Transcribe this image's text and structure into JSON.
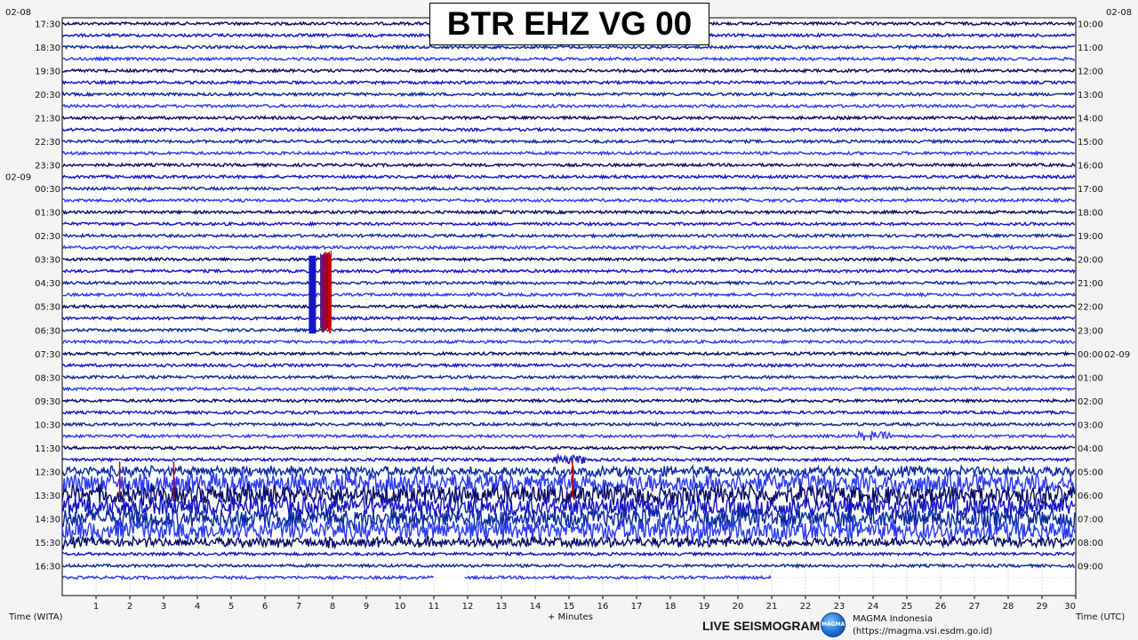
{
  "title": "BTR EHZ VG 00",
  "chart_data": {
    "type": "line",
    "title": "BTR EHZ VG 00",
    "xlabel": "+ Minutes",
    "x_range": [
      0,
      30
    ],
    "x_ticks": [
      "1",
      "2",
      "3",
      "4",
      "5",
      "6",
      "7",
      "8",
      "9",
      "10",
      "11",
      "12",
      "13",
      "14",
      "15",
      "16",
      "17",
      "18",
      "19",
      "20",
      "21",
      "22",
      "23",
      "24",
      "25",
      "26",
      "27",
      "28",
      "29",
      "30"
    ],
    "left_axis_label": "Time (WITA)",
    "right_axis_label": "Time (UTC)",
    "left_date_labels": [
      {
        "text": "02-08",
        "before_hour": "17:30"
      },
      {
        "text": "02-09",
        "before_hour": "00:30"
      }
    ],
    "right_date_labels": [
      {
        "text": "02-08",
        "before_hour": "10:00"
      },
      {
        "text": "02-09",
        "after_hour": "00:00"
      }
    ],
    "left_hours": [
      "17:30",
      "18:30",
      "19:30",
      "20:30",
      "21:30",
      "22:30",
      "23:30",
      "00:30",
      "01:30",
      "02:30",
      "03:30",
      "04:30",
      "05:30",
      "06:30",
      "07:30",
      "08:30",
      "09:30",
      "10:30",
      "11:30",
      "12:30",
      "13:30",
      "14:30",
      "15:30",
      "16:30"
    ],
    "right_hours": [
      "10:00",
      "11:00",
      "12:00",
      "13:00",
      "14:00",
      "15:00",
      "16:00",
      "17:00",
      "18:00",
      "19:00",
      "20:00",
      "21:00",
      "22:00",
      "23:00",
      "00:00",
      "01:00",
      "02:00",
      "03:00",
      "04:00",
      "05:00",
      "06:00",
      "07:00",
      "08:00",
      "09:00"
    ],
    "trace_colors": [
      "#0a0a66",
      "#1414c8",
      "#0b2a9e",
      "#2a3cf0"
    ],
    "clip_color": "#d40000",
    "grid": true,
    "traces_per_hour": 2,
    "trace_count": 48,
    "last_trace_partial_minutes": 21,
    "last_trace_gap_minutes": [
      11,
      11.9
    ],
    "events": [
      {
        "start_trace": 20,
        "end_trace": 26,
        "minute_start": 7.3,
        "minute_end": 8.0,
        "kind": "clipped"
      },
      {
        "start_trace": 35,
        "end_trace": 35,
        "minute_start": 23.5,
        "minute_end": 24.5,
        "kind": "local"
      },
      {
        "start_trace": 38,
        "end_trace": 38,
        "minute_start": 0.5,
        "minute_end": 1.0,
        "kind": "local"
      },
      {
        "start_trace": 37,
        "end_trace": 37,
        "minute_start": 14.5,
        "minute_end": 15.5,
        "kind": "local"
      },
      {
        "start_trace": 38,
        "end_trace": 44,
        "minute_start": 0,
        "minute_end": 30,
        "kind": "tremor_swarm"
      }
    ]
  },
  "footer": {
    "brand_label": "LIVE SEISMOGRAM",
    "logo_text": "MAGMA",
    "org_name": "MAGMA Indonesia",
    "org_url": "(https://magma.vsi.esdm.go.id)"
  }
}
